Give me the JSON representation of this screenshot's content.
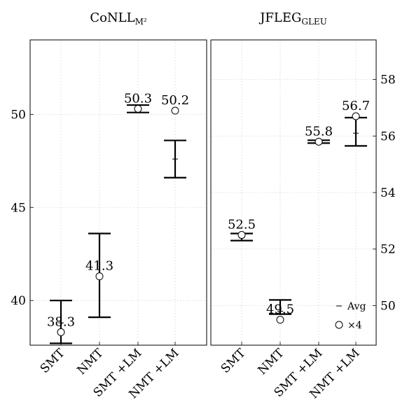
{
  "chart_data": [
    {
      "type": "scatter",
      "title": "CoNLL",
      "title_subscript": "M²",
      "categories": [
        "SMT",
        "NMT",
        "SMT +LM",
        "NMT +LM"
      ],
      "ylim": [
        37.6,
        54.0
      ],
      "yticks": [
        40,
        45,
        50
      ],
      "y_axis_side": "left",
      "grid": true,
      "series": [
        {
          "name": "Avg",
          "marker": "dash",
          "values": [
            38.8,
            41.3,
            50.3,
            47.6
          ],
          "err_low": [
            37.7,
            39.1,
            50.1,
            46.6
          ],
          "err_high": [
            40.0,
            43.6,
            50.5,
            48.6
          ]
        },
        {
          "name": "×4",
          "marker": "circle",
          "values": [
            38.3,
            41.3,
            50.3,
            50.2
          ],
          "labels": [
            "38.3",
            "41.3",
            "50.3",
            "50.2"
          ]
        }
      ]
    },
    {
      "type": "scatter",
      "title": "JFLEG",
      "title_subscript": "GLEU",
      "categories": [
        "SMT",
        "NMT",
        "SMT +LM",
        "NMT +LM"
      ],
      "ylim": [
        48.6,
        59.4
      ],
      "yticks": [
        50,
        52,
        54,
        56,
        58
      ],
      "y_axis_side": "right",
      "grid": true,
      "series": [
        {
          "name": "Avg",
          "marker": "dash",
          "values": [
            52.4,
            49.8,
            55.8,
            56.1
          ],
          "err_low": [
            52.3,
            49.7,
            55.75,
            55.65
          ],
          "err_high": [
            52.55,
            50.2,
            55.85,
            56.65
          ]
        },
        {
          "name": "×4",
          "marker": "circle",
          "values": [
            52.5,
            49.5,
            55.8,
            56.7
          ],
          "labels": [
            "52.5",
            "49.5",
            "55.8",
            "56.7"
          ]
        }
      ],
      "legend": {
        "position": "bottom-right",
        "items": [
          "Avg",
          "×4"
        ]
      }
    }
  ]
}
